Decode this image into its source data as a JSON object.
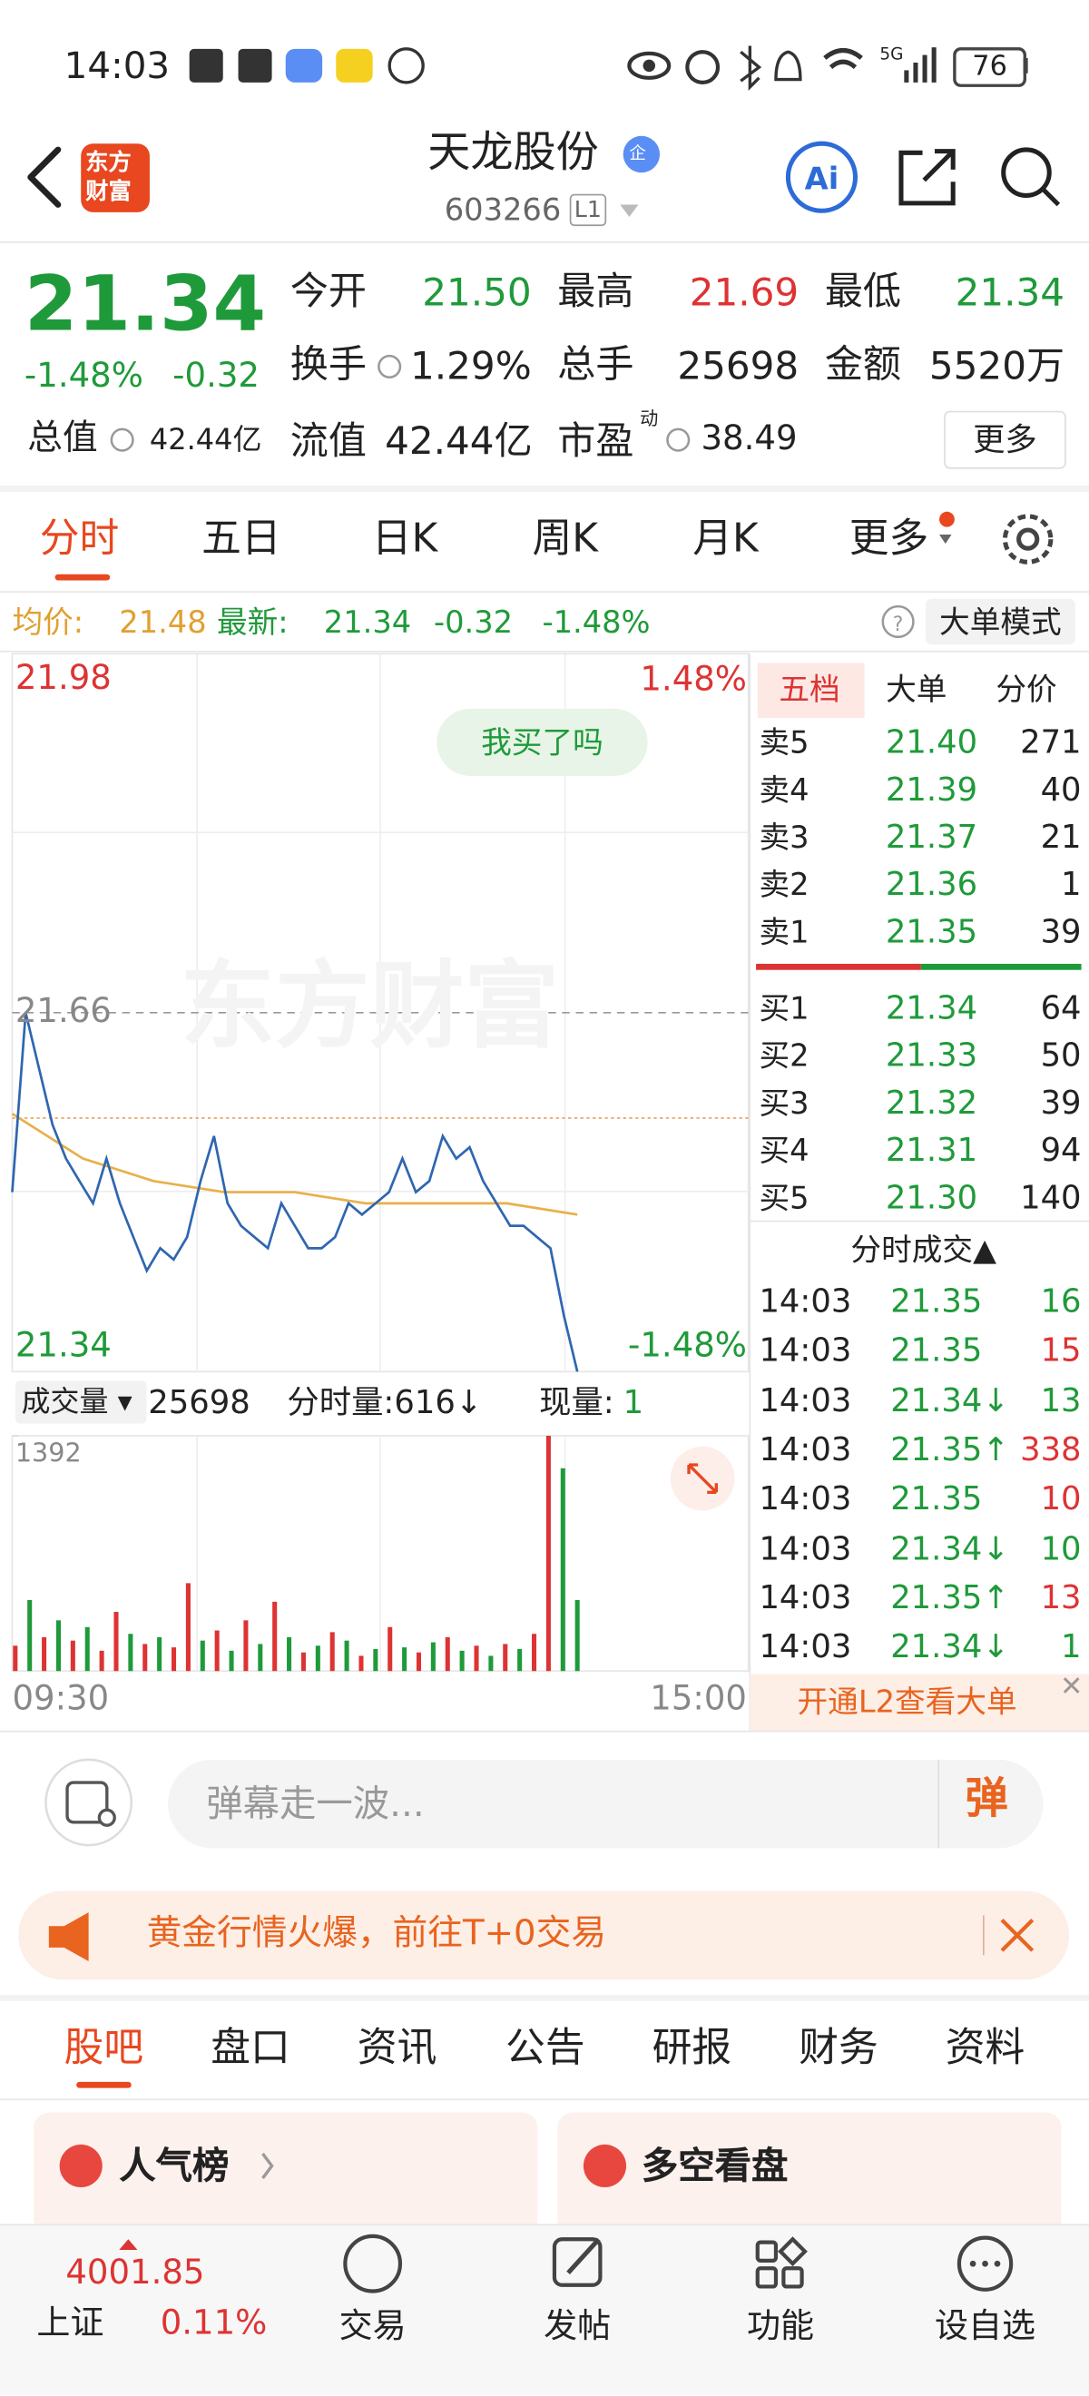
{
  "status": {
    "time": "14:03",
    "network": "5G",
    "battery": "76"
  },
  "header": {
    "logo": [
      "东方",
      "财富"
    ],
    "name": "天龙股份",
    "badge": "企",
    "code": "603266",
    "level": "L1"
  },
  "quote": {
    "price": "21.34",
    "change_pct": "-1.48%",
    "change": "-0.32",
    "fields": [
      {
        "label": "今开",
        "value": "21.50",
        "color": "#1f9a3a"
      },
      {
        "label": "最高",
        "value": "21.69",
        "color": "#dd3333"
      },
      {
        "label": "最低",
        "value": "21.34",
        "color": "#1f9a3a"
      },
      {
        "label": "换手",
        "value": "1.29%",
        "color": "#222222"
      },
      {
        "label": "总手",
        "value": "25698",
        "color": "#222222"
      },
      {
        "label": "金额",
        "value": "5520万",
        "color": "#222222"
      }
    ],
    "total_label": "总值",
    "total_value": "42.44亿",
    "float_label": "流值",
    "float_value": "42.44亿",
    "pe_label": "市盈",
    "pe_sup": "动",
    "pe_value": "38.49",
    "more": "更多"
  },
  "tabs": [
    "分时",
    "五日",
    "日K",
    "周K",
    "月K",
    "更多"
  ],
  "info": {
    "avg_label": "均价:",
    "avg": "21.48",
    "latest_label": "最新:",
    "latest": "21.34",
    "change": "-0.32",
    "change_pct": "-1.48%",
    "mode": "大单模式"
  },
  "chart": {
    "ylim": [
      21.34,
      21.98
    ],
    "yticks": [
      21.98,
      21.66,
      21.34
    ],
    "pct_top": "1.48%",
    "pct_bottom": "-1.48%",
    "bubble": "我买了吗",
    "watermark": "东方财富",
    "price": [
      21.5,
      21.66,
      21.61,
      21.56,
      21.53,
      21.51,
      21.49,
      21.53,
      21.49,
      21.46,
      21.43,
      21.45,
      21.44,
      21.46,
      21.51,
      21.55,
      21.49,
      21.47,
      21.46,
      21.45,
      21.49,
      21.47,
      21.45,
      21.45,
      21.46,
      21.49,
      21.48,
      21.49,
      21.5,
      21.53,
      21.5,
      21.51,
      21.55,
      21.53,
      21.54,
      21.51,
      21.49,
      21.47,
      21.47,
      21.46,
      21.45,
      21.39,
      21.34
    ],
    "price_color": "#2f66b0",
    "avg": [
      21.57,
      21.53,
      21.51,
      21.5,
      21.5,
      21.49,
      21.49,
      21.49,
      21.48
    ],
    "avg_color": "#e8b04a",
    "times": [
      "09:30",
      "15:00"
    ],
    "volume_label": "成交量",
    "volume_total": "25698",
    "minute_volume": "分时量:616↓",
    "current_label": "现量:",
    "current_value": "1",
    "vlim": [
      0,
      1392
    ],
    "vticks": [
      1392
    ],
    "volumes": [
      150,
      420,
      200,
      300,
      180,
      260,
      120,
      350,
      220,
      160,
      200,
      140,
      520,
      180,
      240,
      120,
      300,
      160,
      410,
      200,
      110,
      150,
      230,
      180,
      90,
      130,
      260,
      140,
      110,
      170,
      200,
      120,
      150,
      90,
      160,
      130,
      220,
      1392,
      1200,
      420
    ],
    "volume_colors": [
      "#dd3333",
      "#1f9a3a",
      "#dd3333",
      "#1f9a3a",
      "#dd3333",
      "#1f9a3a",
      "#dd3333",
      "#dd3333",
      "#1f9a3a",
      "#dd3333",
      "#1f9a3a",
      "#dd3333",
      "#dd3333",
      "#1f9a3a",
      "#dd3333",
      "#1f9a3a",
      "#dd3333",
      "#1f9a3a",
      "#dd3333",
      "#1f9a3a",
      "#dd3333",
      "#1f9a3a",
      "#dd3333",
      "#1f9a3a",
      "#dd3333",
      "#1f9a3a",
      "#dd3333",
      "#1f9a3a",
      "#dd3333",
      "#1f9a3a",
      "#dd3333",
      "#1f9a3a",
      "#dd3333",
      "#1f9a3a",
      "#dd3333",
      "#1f9a3a",
      "#dd3333",
      "#dd3333",
      "#1f9a3a",
      "#1f9a3a"
    ]
  },
  "book": {
    "tabs": [
      "五档",
      "大单",
      "分价"
    ],
    "asks": [
      [
        "卖5",
        "21.40",
        "271"
      ],
      [
        "卖4",
        "21.39",
        "40"
      ],
      [
        "卖3",
        "21.37",
        "21"
      ],
      [
        "卖2",
        "21.36",
        "1"
      ],
      [
        "卖1",
        "21.35",
        "39"
      ]
    ],
    "bids": [
      [
        "买1",
        "21.34",
        "64"
      ],
      [
        "买2",
        "21.33",
        "50"
      ],
      [
        "买3",
        "21.32",
        "39"
      ],
      [
        "买4",
        "21.31",
        "94"
      ],
      [
        "买5",
        "21.30",
        "140"
      ]
    ],
    "trades_title": "分时成交▲",
    "trades": [
      {
        "time": "14:03",
        "price": "21.35",
        "vol": "16",
        "color": "#1f9a3a"
      },
      {
        "time": "14:03",
        "price": "21.35",
        "vol": "15",
        "color": "#dd3333"
      },
      {
        "time": "14:03",
        "price": "21.34↓",
        "vol": "13",
        "color": "#1f9a3a"
      },
      {
        "time": "14:03",
        "price": "21.35↑",
        "vol": "338",
        "color": "#dd3333"
      },
      {
        "time": "14:03",
        "price": "21.35",
        "vol": "10",
        "color": "#dd3333"
      },
      {
        "time": "14:03",
        "price": "21.34↓",
        "vol": "10",
        "color": "#1f9a3a"
      },
      {
        "time": "14:03",
        "price": "21.35↑",
        "vol": "13",
        "color": "#dd3333"
      },
      {
        "time": "14:03",
        "price": "21.34↓",
        "vol": "1",
        "color": "#1f9a3a"
      }
    ],
    "l2": "开通L2查看大单"
  },
  "comment": {
    "placeholder": "弹幕走一波...",
    "button": "弹"
  },
  "banner": "黄金行情火爆，前往T+0交易",
  "sections": [
    "股吧",
    "盘口",
    "资讯",
    "公告",
    "研报",
    "财务",
    "资料"
  ],
  "cards": [
    "人气榜",
    "多空看盘"
  ],
  "bottom": {
    "index_value": "4001.85",
    "index_name": "上证",
    "index_change": "0.11%",
    "items": [
      "交易",
      "发帖",
      "功能",
      "设自选"
    ]
  }
}
